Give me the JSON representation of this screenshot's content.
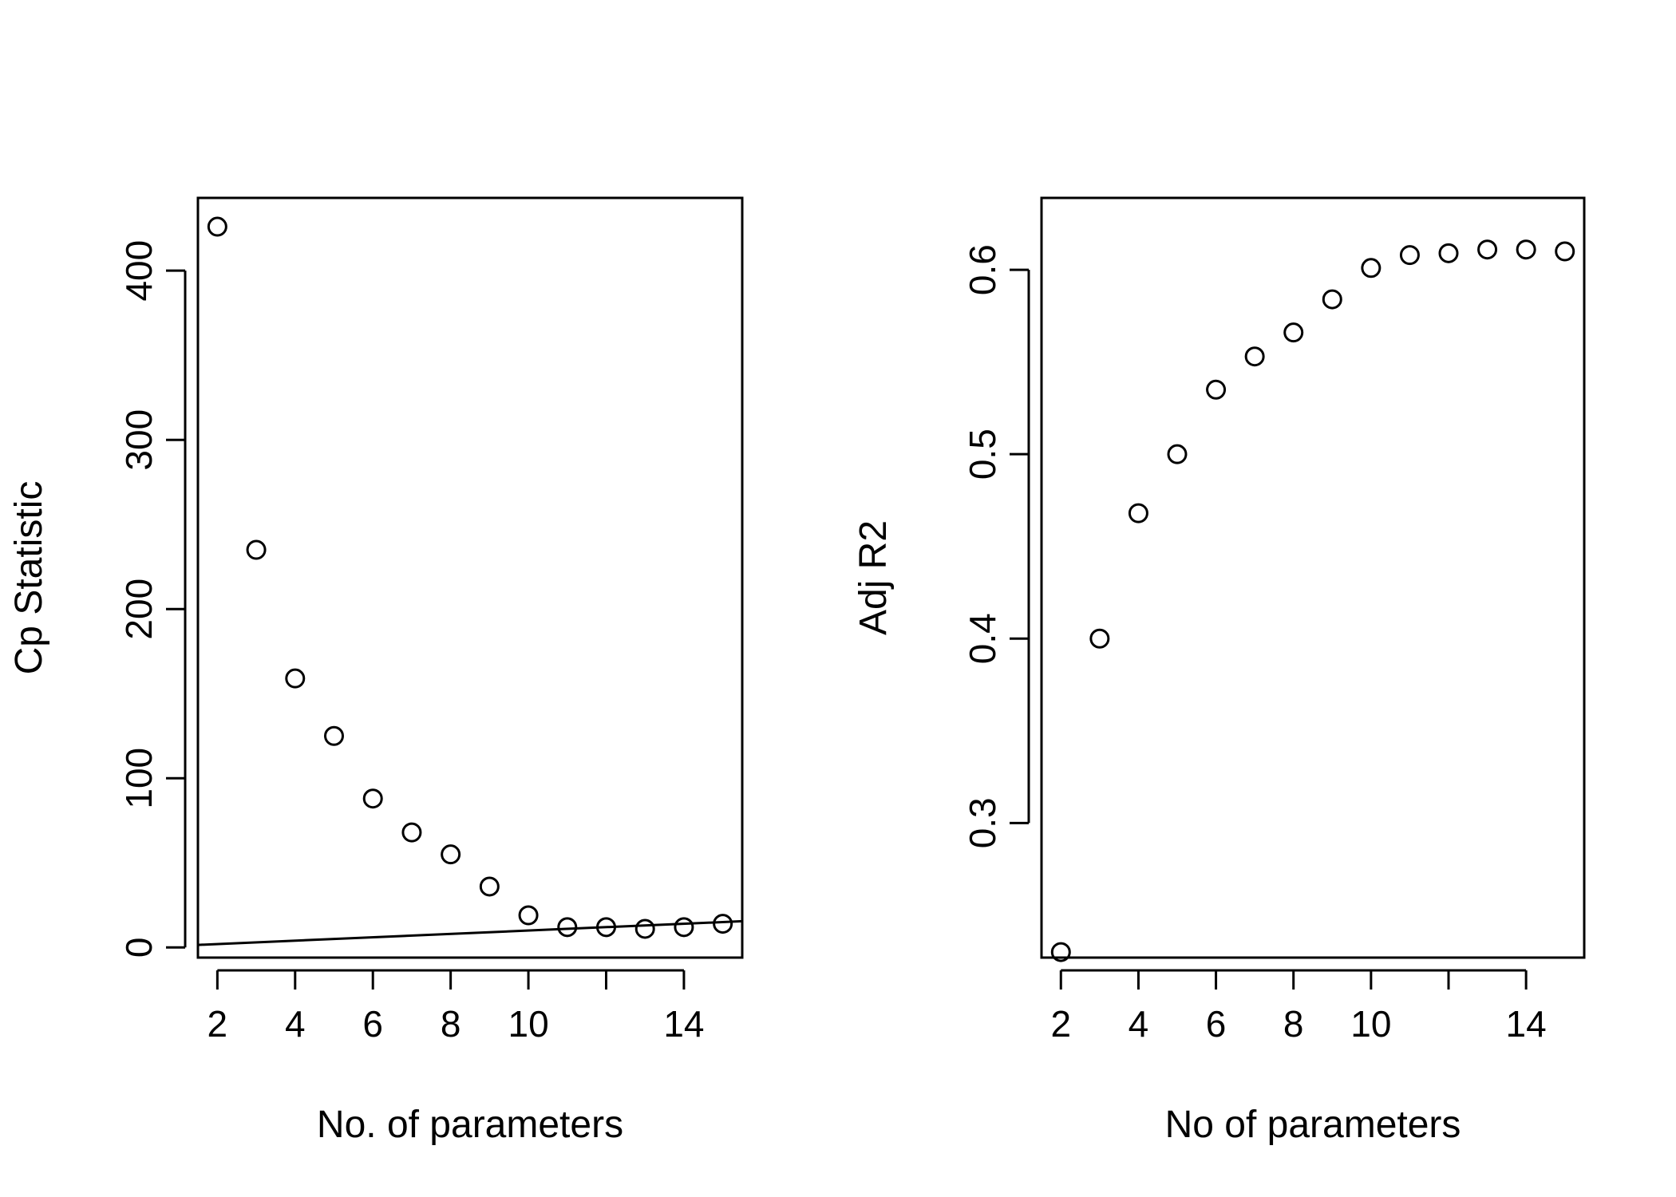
{
  "chart_data": [
    {
      "type": "scatter",
      "xlabel": "No. of parameters",
      "ylabel": "Cp Statistic",
      "xlim": [
        1.5,
        15.5
      ],
      "ylim": [
        -6,
        443
      ],
      "xticks": [
        2,
        4,
        6,
        8,
        10,
        12,
        14
      ],
      "xtick_labels": [
        "2",
        "4",
        "6",
        "8",
        "10",
        "",
        "14"
      ],
      "yticks": [
        0,
        100,
        200,
        300,
        400
      ],
      "ytick_labels": [
        "0",
        "100",
        "200",
        "300",
        "400"
      ],
      "x": [
        2,
        3,
        4,
        5,
        6,
        7,
        8,
        9,
        10,
        11,
        12,
        13,
        14,
        15
      ],
      "y": [
        426,
        235,
        159,
        125,
        88,
        68,
        55,
        36,
        19,
        12,
        12,
        11,
        12,
        14
      ],
      "reference_line": {
        "intercept": 0,
        "slope": 1
      },
      "marker": "open-circle",
      "grid": false
    },
    {
      "type": "scatter",
      "xlabel": "No of parameters",
      "ylabel": "Adj R2",
      "xlim": [
        1.5,
        15.5
      ],
      "ylim": [
        0.227,
        0.639
      ],
      "xticks": [
        2,
        4,
        6,
        8,
        10,
        12,
        14
      ],
      "xtick_labels": [
        "2",
        "4",
        "6",
        "8",
        "10",
        "",
        "14"
      ],
      "yticks": [
        0.3,
        0.4,
        0.5,
        0.6
      ],
      "ytick_labels": [
        "0.3",
        "0.4",
        "0.5",
        "0.6"
      ],
      "x": [
        2,
        3,
        4,
        5,
        6,
        7,
        8,
        9,
        10,
        11,
        12,
        13,
        14,
        15
      ],
      "y": [
        0.23,
        0.4,
        0.468,
        0.5,
        0.535,
        0.553,
        0.566,
        0.584,
        0.601,
        0.608,
        0.609,
        0.611,
        0.611,
        0.61
      ],
      "marker": "open-circle",
      "grid": false
    }
  ]
}
